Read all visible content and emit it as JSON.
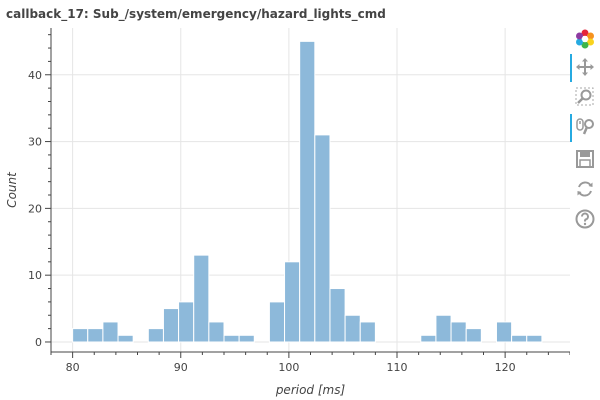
{
  "chart_data": {
    "type": "bar",
    "title": "callback_17: Sub_/system/emergency/hazard_lights_cmd",
    "xlabel": "period [ms]",
    "ylabel": "Count",
    "xlim": [
      78,
      126
    ],
    "ylim": [
      -1.5,
      47
    ],
    "xticks": [
      80,
      90,
      100,
      110,
      120
    ],
    "yticks": [
      0,
      10,
      20,
      30,
      40
    ],
    "grid": true,
    "bar_color": "#8db9da",
    "bin_width": 1.4,
    "bins": [
      {
        "x": 80,
        "count": 2
      },
      {
        "x": 81.4,
        "count": 2
      },
      {
        "x": 82.8,
        "count": 3
      },
      {
        "x": 84.2,
        "count": 1
      },
      {
        "x": 85.6,
        "count": 0
      },
      {
        "x": 87.0,
        "count": 2
      },
      {
        "x": 88.4,
        "count": 5
      },
      {
        "x": 89.8,
        "count": 6
      },
      {
        "x": 91.2,
        "count": 13
      },
      {
        "x": 92.6,
        "count": 3
      },
      {
        "x": 94.0,
        "count": 1
      },
      {
        "x": 95.4,
        "count": 1
      },
      {
        "x": 96.8,
        "count": 0
      },
      {
        "x": 98.2,
        "count": 6
      },
      {
        "x": 99.6,
        "count": 12
      },
      {
        "x": 101.0,
        "count": 45
      },
      {
        "x": 102.4,
        "count": 31
      },
      {
        "x": 103.8,
        "count": 8
      },
      {
        "x": 105.2,
        "count": 4
      },
      {
        "x": 106.6,
        "count": 3
      },
      {
        "x": 108.0,
        "count": 0
      },
      {
        "x": 109.4,
        "count": 0
      },
      {
        "x": 110.8,
        "count": 0
      },
      {
        "x": 112.2,
        "count": 1
      },
      {
        "x": 113.6,
        "count": 4
      },
      {
        "x": 115.0,
        "count": 3
      },
      {
        "x": 116.4,
        "count": 2
      },
      {
        "x": 117.8,
        "count": 0
      },
      {
        "x": 119.2,
        "count": 3
      },
      {
        "x": 120.6,
        "count": 1
      },
      {
        "x": 122.0,
        "count": 1
      }
    ]
  },
  "toolbar": {
    "tools": [
      {
        "name": "bokeh-logo-icon",
        "active": false
      },
      {
        "name": "pan-icon",
        "active": true
      },
      {
        "name": "box-zoom-icon",
        "active": false
      },
      {
        "name": "wheel-zoom-icon",
        "active": true
      },
      {
        "name": "save-icon",
        "active": false
      },
      {
        "name": "reset-icon",
        "active": false
      },
      {
        "name": "help-icon",
        "active": false
      }
    ]
  }
}
